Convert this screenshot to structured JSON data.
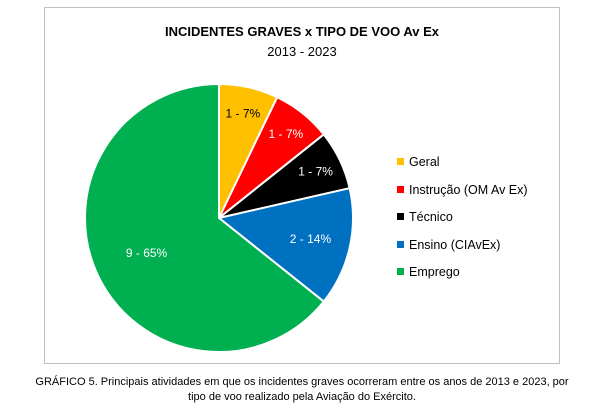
{
  "chart_data": {
    "type": "pie",
    "title": "INCIDENTES GRAVES x TIPO DE VOO Av Ex",
    "subtitle": "2013 - 2023",
    "slices": [
      {
        "name": "Geral",
        "count": 1,
        "percent": 7,
        "label": "1 - 7%",
        "color": "#ffc000"
      },
      {
        "name": "Instrução (OM Av Ex)",
        "count": 1,
        "percent": 7,
        "label": "1 - 7%",
        "color": "#ff0000"
      },
      {
        "name": "Técnico",
        "count": 1,
        "percent": 7,
        "label": "1 - 7%",
        "color": "#000000"
      },
      {
        "name": "Ensino (CIAvEx)",
        "count": 2,
        "percent": 14,
        "label": "2 - 14%",
        "color": "#0070c0"
      },
      {
        "name": "Emprego",
        "count": 9,
        "percent": 65,
        "label": "9 - 65%",
        "color": "#00b050"
      }
    ],
    "legend_position": "right"
  },
  "caption": {
    "line1": "GRÁFICO 5. Principais atividades em que os incidentes graves ocorreram entre os anos de 2013 e 2023, por",
    "line2": "tipo de voo realizado pela Aviação do Exército."
  }
}
